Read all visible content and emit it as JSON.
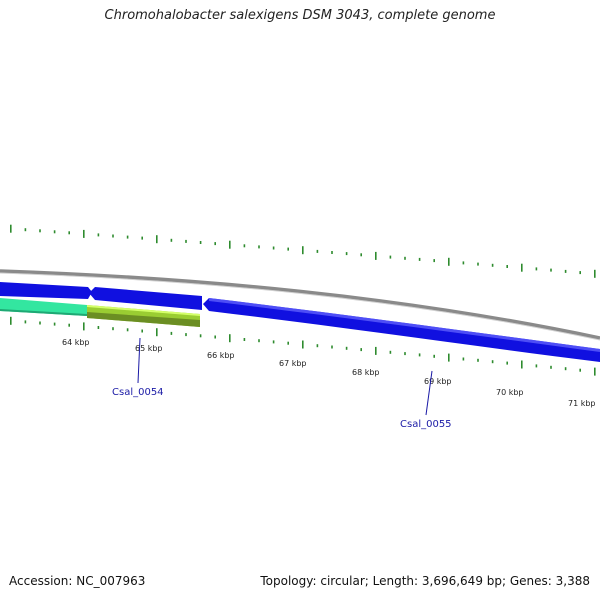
{
  "header": {
    "title": "Chromohalobacter salexigens DSM 3043, complete genome"
  },
  "footer": {
    "accession": "Accession: NC_007963",
    "summary": "Topology: circular; Length: 3,696,649 bp; Genes: 3,388"
  },
  "colors": {
    "backbone": "#8a8a8a",
    "forward_gene": "#1010e0",
    "cds_a": "#33e6a0",
    "cds_b": "#9acd32",
    "tick": "#2e8b2e",
    "gene_label": "#1a1aa6"
  },
  "map": {
    "kbp_labels": [
      "64 kbp",
      "65 kbp",
      "66 kbp",
      "67 kbp",
      "68 kbp",
      "69 kbp",
      "70 kbp",
      "71 kbp"
    ],
    "gene_labels": [
      "Csal_0054",
      "Csal_0055"
    ]
  }
}
